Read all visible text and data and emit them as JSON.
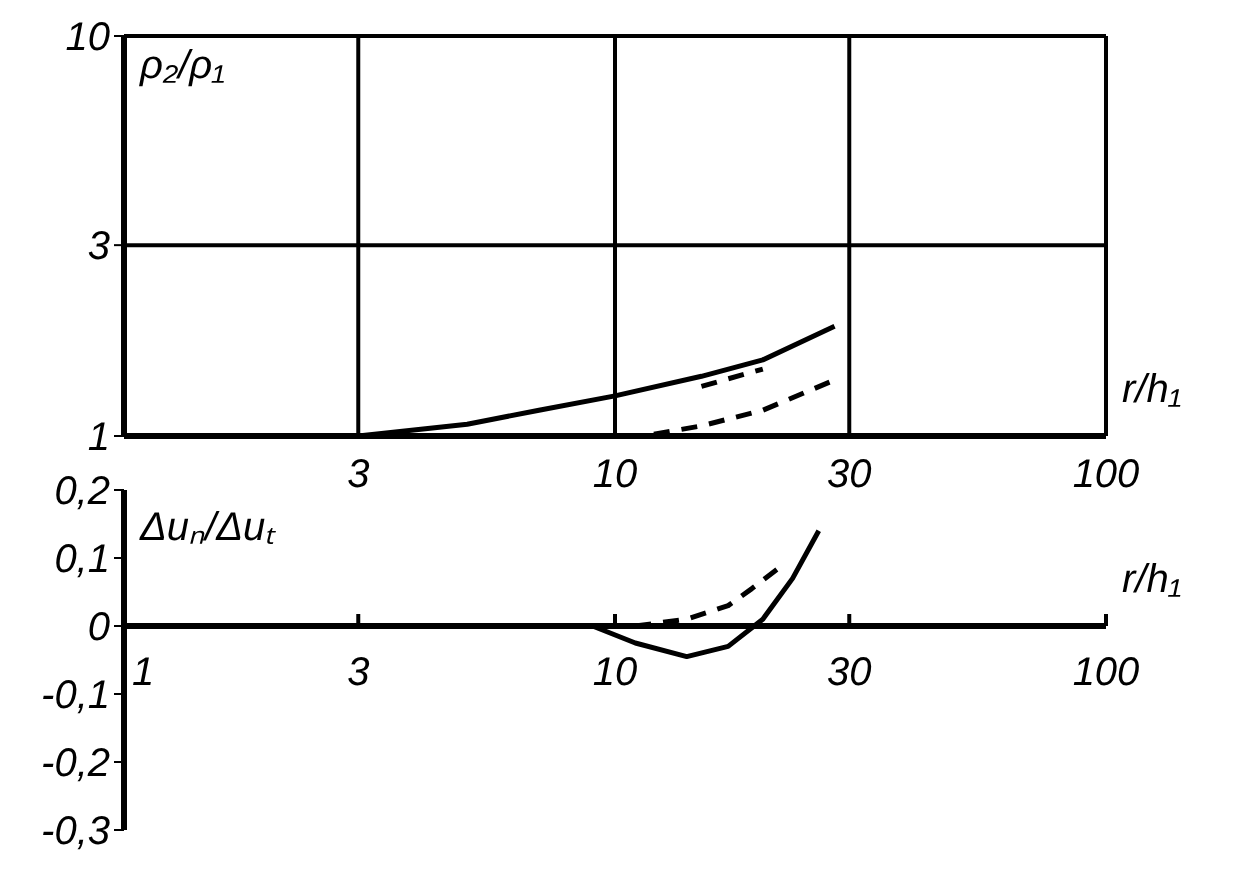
{
  "chart_data": [
    {
      "type": "line",
      "ylabel": "ρ₂/ρ₁",
      "xlabel": "r/h₁",
      "log": "xy",
      "xlim": [
        1,
        100
      ],
      "xticks": [
        {
          "value": 1,
          "label": null
        },
        3,
        10,
        30,
        100
      ],
      "ylim": [
        1,
        10
      ],
      "yticks": [
        1,
        3,
        10
      ],
      "grid": true,
      "marker": "none",
      "series": [
        {
          "color": "#000000",
          "line_style": "solid",
          "x": [
            3,
            5,
            7,
            10,
            15,
            20,
            28
          ],
          "values": [
            1.0,
            1.07,
            1.16,
            1.26,
            1.41,
            1.55,
            1.88
          ]
        },
        {
          "color": "#000000",
          "line_style": "dashed",
          "x": [
            15,
            17,
            20
          ],
          "values": [
            1.33,
            1.39,
            1.47
          ]
        },
        {
          "color": "#000000",
          "line_style": "dashed",
          "x": [
            12,
            15,
            20,
            28
          ],
          "values": [
            1.01,
            1.06,
            1.16,
            1.38
          ]
        }
      ]
    },
    {
      "type": "line",
      "ylabel": "Δuₙ/Δuₜ",
      "xlabel": "r/h₁",
      "log": "x",
      "xlim": [
        1,
        100
      ],
      "xticks": [
        1,
        3,
        10,
        30,
        100
      ],
      "ylim": [
        -0.3,
        0.2
      ],
      "yticks": [
        {
          "value": -0.3,
          "label": "-0,3"
        },
        {
          "value": -0.2,
          "label": "-0,2"
        },
        {
          "value": -0.1,
          "label": "-0,1"
        },
        {
          "value": 0,
          "label": "0"
        },
        {
          "value": 0.1,
          "label": "0,1"
        },
        {
          "value": 0.2,
          "label": "0,2"
        }
      ],
      "grid": false,
      "marker": "none",
      "series": [
        {
          "color": "#000000",
          "line_style": "solid",
          "x": [
            1,
            9,
            11,
            14,
            17,
            20,
            23,
            26
          ],
          "values": [
            0,
            0,
            -0.025,
            -0.045,
            -0.03,
            0.01,
            0.07,
            0.14
          ]
        },
        {
          "color": "#000000",
          "line_style": "dashed",
          "x": [
            11,
            14,
            17,
            19,
            22
          ],
          "values": [
            0,
            0.01,
            0.03,
            0.055,
            0.09
          ]
        }
      ]
    }
  ]
}
